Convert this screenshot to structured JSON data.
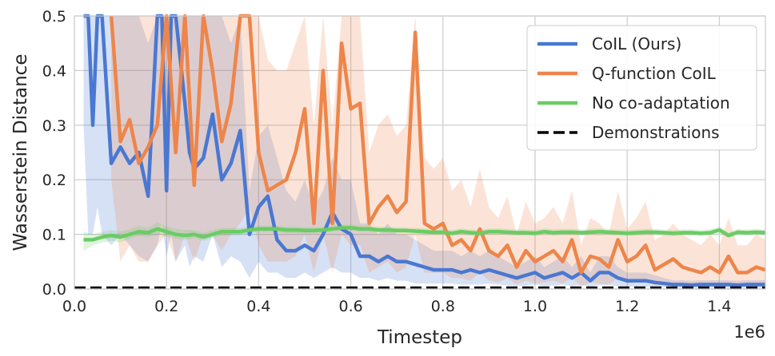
{
  "chart_data": {
    "type": "line",
    "xlabel": "Timestep",
    "ylabel": "Wasserstein Distance",
    "x_offset_label": "1e6",
    "xlim": [
      0,
      1.5
    ],
    "ylim": [
      0,
      0.5
    ],
    "x_ticks": [
      0.0,
      0.2,
      0.4,
      0.6,
      0.8,
      1.0,
      1.2,
      1.4
    ],
    "x_tick_labels": [
      "0.0",
      "0.2",
      "0.4",
      "0.6",
      "0.8",
      "1.0",
      "1.2",
      "1.4"
    ],
    "y_ticks": [
      0.0,
      0.1,
      0.2,
      0.3,
      0.4,
      0.5
    ],
    "y_tick_labels": [
      "0.0",
      "0.1",
      "0.2",
      "0.3",
      "0.4",
      "0.5"
    ],
    "grid": true,
    "legend_position": "top-right",
    "series": [
      {
        "name": "CoIL (Ours)",
        "color": "#4a78d1",
        "x": [
          0.02,
          0.03,
          0.04,
          0.05,
          0.06,
          0.08,
          0.1,
          0.12,
          0.14,
          0.16,
          0.18,
          0.19,
          0.2,
          0.21,
          0.22,
          0.24,
          0.25,
          0.26,
          0.28,
          0.3,
          0.32,
          0.34,
          0.36,
          0.38,
          0.4,
          0.42,
          0.44,
          0.46,
          0.48,
          0.5,
          0.52,
          0.54,
          0.56,
          0.58,
          0.6,
          0.62,
          0.64,
          0.66,
          0.68,
          0.7,
          0.72,
          0.74,
          0.76,
          0.78,
          0.8,
          0.82,
          0.84,
          0.86,
          0.88,
          0.9,
          0.92,
          0.94,
          0.96,
          0.98,
          1.0,
          1.02,
          1.04,
          1.06,
          1.08,
          1.1,
          1.12,
          1.14,
          1.16,
          1.18,
          1.2,
          1.22,
          1.24,
          1.26,
          1.28,
          1.3,
          1.32,
          1.34,
          1.36,
          1.38,
          1.4,
          1.42,
          1.44,
          1.46,
          1.48,
          1.5
        ],
        "y": [
          0.5,
          0.5,
          0.3,
          0.5,
          0.5,
          0.23,
          0.26,
          0.23,
          0.25,
          0.17,
          0.5,
          0.5,
          0.18,
          0.5,
          0.5,
          0.34,
          0.25,
          0.22,
          0.24,
          0.32,
          0.2,
          0.23,
          0.29,
          0.1,
          0.15,
          0.17,
          0.09,
          0.07,
          0.07,
          0.08,
          0.07,
          0.1,
          0.14,
          0.11,
          0.1,
          0.06,
          0.06,
          0.05,
          0.06,
          0.05,
          0.05,
          0.045,
          0.04,
          0.035,
          0.035,
          0.035,
          0.03,
          0.035,
          0.03,
          0.035,
          0.03,
          0.025,
          0.02,
          0.025,
          0.03,
          0.02,
          0.025,
          0.03,
          0.02,
          0.03,
          0.015,
          0.03,
          0.03,
          0.02,
          0.015,
          0.015,
          0.015,
          0.012,
          0.01,
          0.008,
          0.008,
          0.007,
          0.008,
          0.008,
          0.008,
          0.008,
          0.007,
          0.008,
          0.008,
          0.008
        ],
        "lower": [
          0.3,
          0.1,
          0.1,
          0.15,
          0.1,
          0.08,
          0.1,
          0.08,
          0.06,
          0.05,
          0.08,
          0.12,
          0.06,
          0.1,
          0.05,
          0.08,
          0.04,
          0.06,
          0.05,
          0.1,
          0.04,
          0.06,
          0.05,
          0.02,
          0.05,
          0.03,
          0.03,
          0.02,
          0.02,
          0.03,
          0.02,
          0.03,
          0.04,
          0.03,
          0.03,
          0.02,
          0.02,
          0.015,
          0.02,
          0.015,
          0.015,
          0.01,
          0.01,
          0.01,
          0.01,
          0.01,
          0.008,
          0.008,
          0.008,
          0.01,
          0.008,
          0.006,
          0.005,
          0.006,
          0.008,
          0.005,
          0.006,
          0.008,
          0.005,
          0.007,
          0.004,
          0.007,
          0.007,
          0.005,
          0.004,
          0.004,
          0.004,
          0.003,
          0.003,
          0.002,
          0.002,
          0.002,
          0.002,
          0.002,
          0.002,
          0.002,
          0.002,
          0.002,
          0.002,
          0.002
        ],
        "upper": [
          0.5,
          0.5,
          0.5,
          0.5,
          0.5,
          0.5,
          0.5,
          0.5,
          0.5,
          0.45,
          0.5,
          0.5,
          0.5,
          0.5,
          0.5,
          0.5,
          0.5,
          0.5,
          0.5,
          0.5,
          0.5,
          0.45,
          0.5,
          0.18,
          0.28,
          0.3,
          0.24,
          0.18,
          0.16,
          0.2,
          0.15,
          0.18,
          0.24,
          0.2,
          0.2,
          0.12,
          0.12,
          0.1,
          0.12,
          0.1,
          0.1,
          0.09,
          0.08,
          0.07,
          0.07,
          0.07,
          0.06,
          0.07,
          0.06,
          0.07,
          0.06,
          0.05,
          0.04,
          0.05,
          0.06,
          0.04,
          0.05,
          0.06,
          0.04,
          0.06,
          0.03,
          0.06,
          0.06,
          0.04,
          0.03,
          0.03,
          0.03,
          0.025,
          0.02,
          0.016,
          0.016,
          0.015,
          0.016,
          0.016,
          0.016,
          0.016,
          0.015,
          0.016,
          0.016,
          0.016
        ]
      },
      {
        "name": "Q-function CoIL",
        "color": "#ee854a",
        "x": [
          0.08,
          0.1,
          0.12,
          0.14,
          0.16,
          0.18,
          0.2,
          0.22,
          0.24,
          0.26,
          0.28,
          0.3,
          0.32,
          0.34,
          0.36,
          0.38,
          0.4,
          0.42,
          0.44,
          0.46,
          0.48,
          0.5,
          0.52,
          0.54,
          0.56,
          0.58,
          0.6,
          0.62,
          0.64,
          0.66,
          0.68,
          0.7,
          0.72,
          0.74,
          0.76,
          0.78,
          0.8,
          0.82,
          0.84,
          0.86,
          0.88,
          0.9,
          0.92,
          0.94,
          0.96,
          0.98,
          1.0,
          1.02,
          1.04,
          1.06,
          1.08,
          1.1,
          1.12,
          1.14,
          1.16,
          1.18,
          1.2,
          1.22,
          1.24,
          1.26,
          1.28,
          1.3,
          1.32,
          1.34,
          1.36,
          1.38,
          1.4,
          1.42,
          1.44,
          1.46,
          1.48,
          1.5
        ],
        "y": [
          0.5,
          0.27,
          0.31,
          0.23,
          0.26,
          0.3,
          0.5,
          0.25,
          0.5,
          0.19,
          0.5,
          0.4,
          0.27,
          0.34,
          0.5,
          0.5,
          0.25,
          0.18,
          0.19,
          0.2,
          0.25,
          0.33,
          0.12,
          0.4,
          0.12,
          0.45,
          0.33,
          0.34,
          0.12,
          0.15,
          0.17,
          0.14,
          0.16,
          0.47,
          0.12,
          0.11,
          0.12,
          0.08,
          0.09,
          0.07,
          0.11,
          0.07,
          0.06,
          0.08,
          0.04,
          0.07,
          0.05,
          0.06,
          0.07,
          0.05,
          0.09,
          0.03,
          0.06,
          0.055,
          0.04,
          0.09,
          0.05,
          0.06,
          0.08,
          0.035,
          0.045,
          0.055,
          0.04,
          0.035,
          0.03,
          0.04,
          0.03,
          0.06,
          0.03,
          0.03,
          0.04,
          0.035
        ],
        "lower": [
          0.2,
          0.05,
          0.08,
          0.05,
          0.05,
          0.08,
          0.1,
          0.05,
          0.1,
          0.05,
          0.1,
          0.1,
          0.07,
          0.1,
          0.12,
          0.15,
          0.08,
          0.05,
          0.05,
          0.05,
          0.06,
          0.1,
          0.03,
          0.1,
          0.03,
          0.1,
          0.08,
          0.08,
          0.03,
          0.04,
          0.05,
          0.03,
          0.04,
          0.1,
          0.03,
          0.03,
          0.03,
          0.02,
          0.02,
          0.015,
          0.03,
          0.015,
          0.012,
          0.02,
          0.008,
          0.015,
          0.01,
          0.012,
          0.015,
          0.01,
          0.02,
          0.005,
          0.012,
          0.01,
          0.008,
          0.02,
          0.01,
          0.012,
          0.015,
          0.006,
          0.008,
          0.01,
          0.008,
          0.006,
          0.005,
          0.008,
          0.005,
          0.012,
          0.005,
          0.005,
          0.008,
          0.006
        ],
        "upper": [
          0.5,
          0.5,
          0.5,
          0.5,
          0.5,
          0.5,
          0.5,
          0.5,
          0.5,
          0.5,
          0.5,
          0.5,
          0.5,
          0.5,
          0.5,
          0.5,
          0.5,
          0.42,
          0.4,
          0.4,
          0.45,
          0.5,
          0.3,
          0.5,
          0.3,
          0.5,
          0.5,
          0.5,
          0.25,
          0.3,
          0.32,
          0.28,
          0.3,
          0.5,
          0.24,
          0.22,
          0.24,
          0.18,
          0.2,
          0.15,
          0.22,
          0.15,
          0.13,
          0.17,
          0.1,
          0.16,
          0.12,
          0.13,
          0.15,
          0.12,
          0.18,
          0.08,
          0.13,
          0.12,
          0.1,
          0.18,
          0.11,
          0.13,
          0.16,
          0.09,
          0.1,
          0.12,
          0.1,
          0.09,
          0.08,
          0.1,
          0.08,
          0.13,
          0.08,
          0.08,
          0.1,
          0.09
        ]
      },
      {
        "name": "No co-adaptation",
        "color": "#6acc64",
        "x": [
          0.02,
          0.04,
          0.06,
          0.08,
          0.1,
          0.12,
          0.14,
          0.16,
          0.18,
          0.2,
          0.22,
          0.24,
          0.26,
          0.28,
          0.3,
          0.32,
          0.34,
          0.36,
          0.38,
          0.4,
          0.42,
          0.44,
          0.46,
          0.48,
          0.5,
          0.52,
          0.54,
          0.56,
          0.58,
          0.6,
          0.62,
          0.64,
          0.66,
          0.68,
          0.7,
          0.72,
          0.74,
          0.76,
          0.78,
          0.8,
          0.82,
          0.84,
          0.86,
          0.88,
          0.9,
          0.92,
          0.94,
          0.96,
          0.98,
          1.0,
          1.02,
          1.04,
          1.06,
          1.08,
          1.1,
          1.12,
          1.14,
          1.16,
          1.18,
          1.2,
          1.22,
          1.24,
          1.26,
          1.28,
          1.3,
          1.32,
          1.34,
          1.36,
          1.38,
          1.4,
          1.42,
          1.44,
          1.46,
          1.48,
          1.5
        ],
        "y": [
          0.09,
          0.09,
          0.095,
          0.098,
          0.095,
          0.1,
          0.105,
          0.103,
          0.11,
          0.105,
          0.1,
          0.098,
          0.1,
          0.095,
          0.1,
          0.105,
          0.105,
          0.105,
          0.108,
          0.11,
          0.11,
          0.11,
          0.108,
          0.108,
          0.107,
          0.107,
          0.108,
          0.11,
          0.112,
          0.112,
          0.11,
          0.11,
          0.108,
          0.108,
          0.107,
          0.107,
          0.106,
          0.105,
          0.104,
          0.104,
          0.102,
          0.105,
          0.103,
          0.102,
          0.105,
          0.105,
          0.104,
          0.103,
          0.103,
          0.102,
          0.105,
          0.103,
          0.104,
          0.104,
          0.103,
          0.104,
          0.105,
          0.104,
          0.103,
          0.102,
          0.103,
          0.104,
          0.104,
          0.103,
          0.102,
          0.103,
          0.103,
          0.102,
          0.103,
          0.108,
          0.098,
          0.104,
          0.103,
          0.104,
          0.103
        ],
        "lower": [
          0.07,
          0.08,
          0.085,
          0.088,
          0.085,
          0.092,
          0.097,
          0.095,
          0.1,
          0.097,
          0.092,
          0.09,
          0.093,
          0.088,
          0.093,
          0.098,
          0.098,
          0.099,
          0.102,
          0.104,
          0.104,
          0.104,
          0.102,
          0.102,
          0.101,
          0.102,
          0.103,
          0.105,
          0.107,
          0.107,
          0.105,
          0.105,
          0.103,
          0.103,
          0.102,
          0.102,
          0.101,
          0.1,
          0.099,
          0.099,
          0.097,
          0.1,
          0.098,
          0.097,
          0.1,
          0.1,
          0.099,
          0.098,
          0.098,
          0.097,
          0.1,
          0.098,
          0.099,
          0.099,
          0.098,
          0.099,
          0.1,
          0.099,
          0.098,
          0.097,
          0.098,
          0.099,
          0.099,
          0.098,
          0.097,
          0.098,
          0.098,
          0.097,
          0.098,
          0.102,
          0.093,
          0.099,
          0.098,
          0.099,
          0.098
        ],
        "upper": [
          0.105,
          0.1,
          0.105,
          0.108,
          0.105,
          0.11,
          0.115,
          0.112,
          0.122,
          0.115,
          0.11,
          0.108,
          0.108,
          0.103,
          0.108,
          0.112,
          0.112,
          0.112,
          0.115,
          0.116,
          0.116,
          0.116,
          0.114,
          0.114,
          0.113,
          0.113,
          0.114,
          0.116,
          0.118,
          0.118,
          0.116,
          0.116,
          0.114,
          0.114,
          0.113,
          0.113,
          0.112,
          0.111,
          0.11,
          0.11,
          0.108,
          0.111,
          0.109,
          0.108,
          0.111,
          0.111,
          0.11,
          0.109,
          0.109,
          0.108,
          0.111,
          0.109,
          0.11,
          0.11,
          0.109,
          0.11,
          0.111,
          0.11,
          0.109,
          0.108,
          0.109,
          0.11,
          0.11,
          0.109,
          0.108,
          0.109,
          0.109,
          0.108,
          0.109,
          0.114,
          0.104,
          0.11,
          0.109,
          0.11,
          0.109
        ]
      },
      {
        "name": "Demonstrations",
        "color": "#000000",
        "x": [
          0.0,
          1.5
        ],
        "y": [
          0.002,
          0.002
        ],
        "style": "dashed"
      }
    ]
  }
}
